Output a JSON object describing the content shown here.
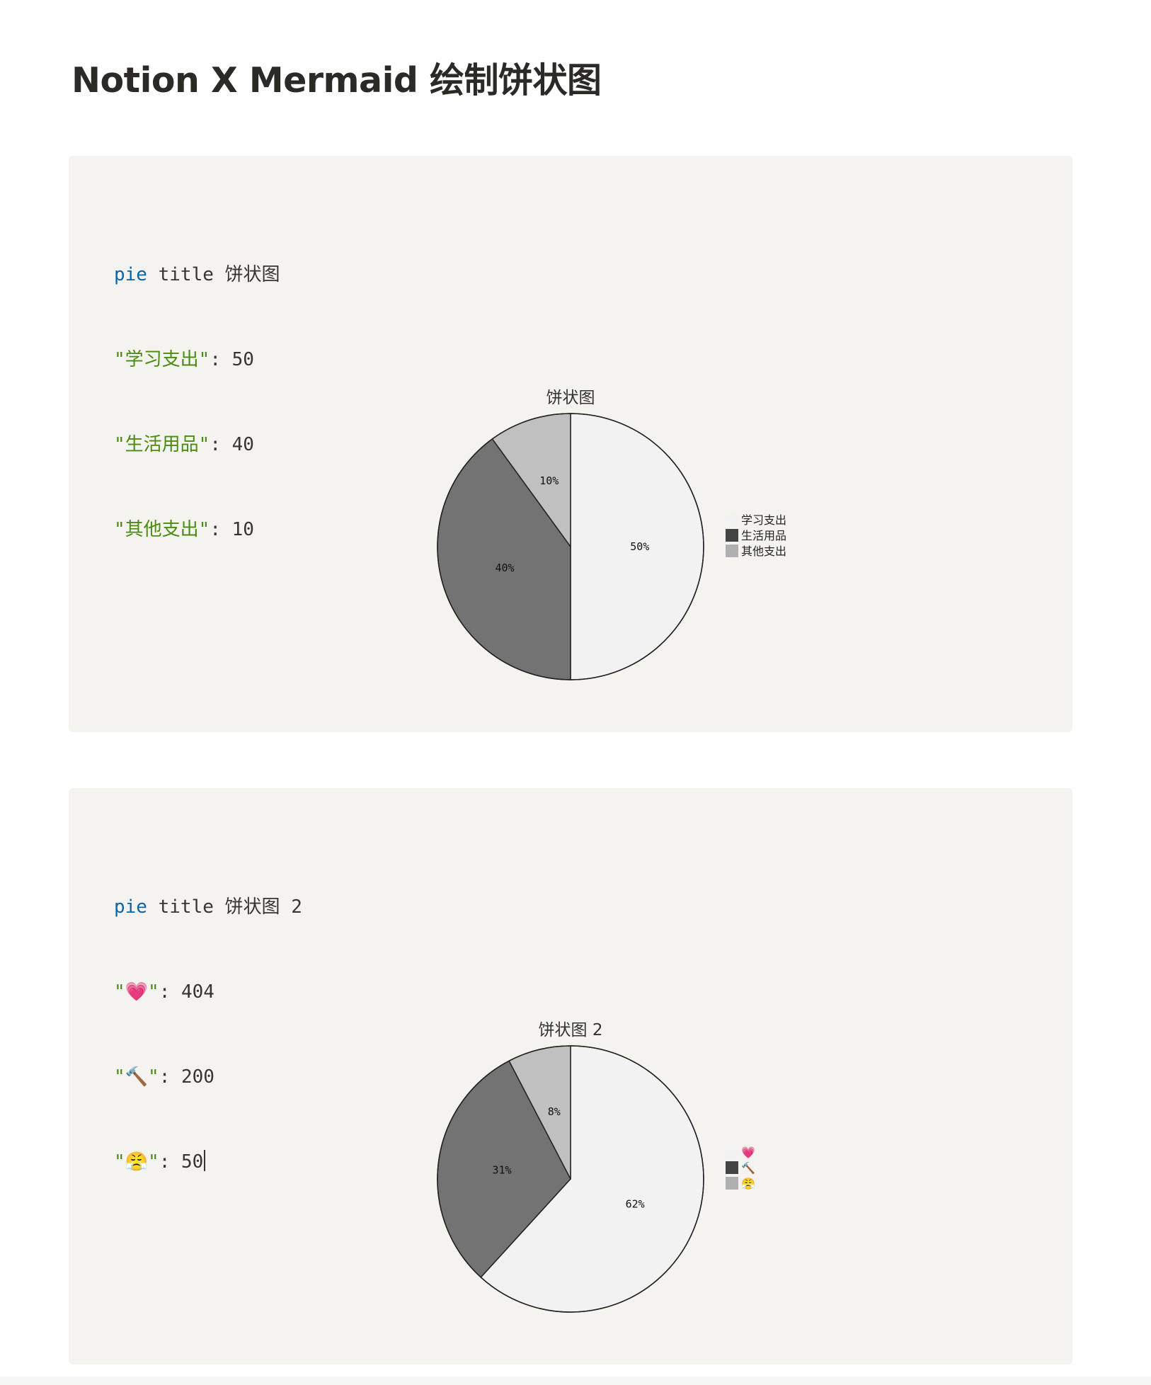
{
  "page": {
    "title": "Notion X Mermaid 绘制饼状图"
  },
  "blocks": [
    {
      "code": {
        "keyword": "pie",
        "title_line": " title 饼状图",
        "lines": [
          {
            "label": "\"学习支出\"",
            "sep": ":",
            "value": " 50"
          },
          {
            "label": "\"生活用品\"",
            "sep": ":",
            "value": " 40"
          },
          {
            "label": "\"其他支出\"",
            "sep": ":",
            "value": " 10"
          }
        ]
      }
    },
    {
      "code": {
        "keyword": "pie",
        "title_line": " title 饼状图 2",
        "lines": [
          {
            "label": "\"💗\"",
            "sep": ":",
            "value": " 404"
          },
          {
            "label": "\"🔨\"",
            "sep": ":",
            "value": " 200"
          },
          {
            "label": "\"😤\"",
            "sep": ":",
            "value": " 50"
          }
        ]
      }
    }
  ],
  "chart_data": [
    {
      "type": "pie",
      "title": "饼状图",
      "slices": [
        {
          "name": "学习支出",
          "value": 50,
          "label": "50%",
          "color": "#f2f2f2"
        },
        {
          "name": "生活用品",
          "value": 40,
          "label": "40%",
          "color": "#737373"
        },
        {
          "name": "其他支出",
          "value": 10,
          "label": "10%",
          "color": "#c0c0c0"
        }
      ],
      "legend": [
        {
          "name": "学习支出",
          "color": "#f2f2f2"
        },
        {
          "name": "生活用品",
          "color": "#444444"
        },
        {
          "name": "其他支出",
          "color": "#b0b0b0"
        }
      ],
      "legend_position": "right"
    },
    {
      "type": "pie",
      "title": "饼状图 2",
      "slices": [
        {
          "name": "💗",
          "value": 404,
          "label": "62%",
          "color": "#f2f2f2"
        },
        {
          "name": "🔨",
          "value": 200,
          "label": "31%",
          "color": "#737373"
        },
        {
          "name": "😤",
          "value": 50,
          "label": "8%",
          "color": "#c0c0c0"
        }
      ],
      "legend": [
        {
          "name": "💗",
          "color": "#f2f2f2"
        },
        {
          "name": "🔨",
          "color": "#444444"
        },
        {
          "name": "😤",
          "color": "#b0b0b0"
        }
      ],
      "legend_position": "right"
    }
  ]
}
